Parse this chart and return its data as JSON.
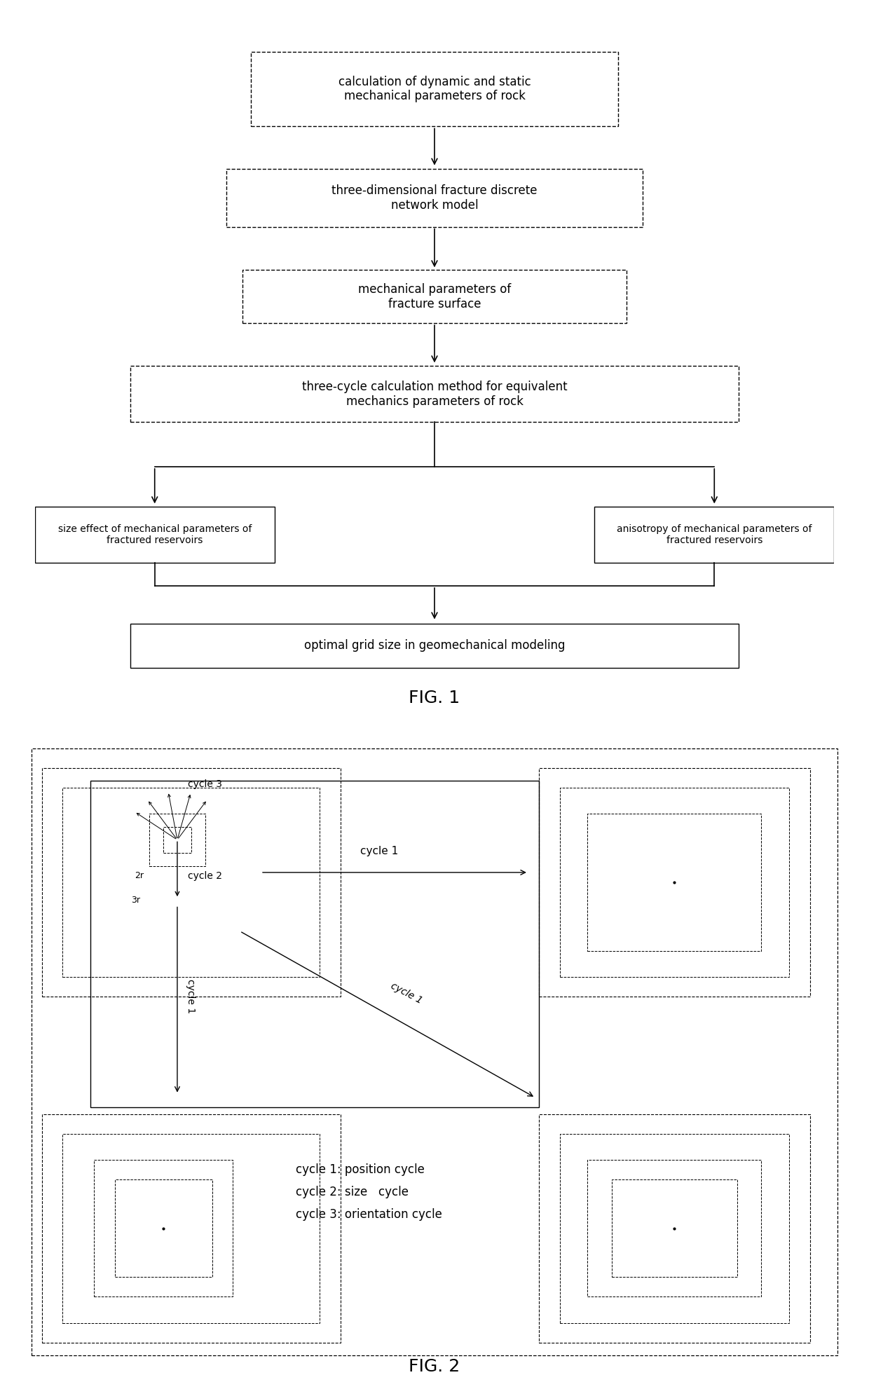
{
  "fig1_title": "FIG. 1",
  "fig2_title": "FIG. 2",
  "box1_text": "calculation of dynamic and static\nmechanical parameters of rock",
  "box2_text": "three-dimensional fracture discrete\nnetwork model",
  "box3_text": "mechanical parameters of\nfracture surface",
  "box4_text": "three-cycle calculation method for equivalent\nmechanics parameters of rock",
  "box5_text": "size effect of mechanical parameters of\nfractured reservoirs",
  "box6_text": "anisotropy of mechanical parameters of\nfractured reservoirs",
  "box7_text": "optimal grid size in geomechanical modeling",
  "cycle_legend": "cycle 1: position cycle\ncycle 2: size   cycle\ncycle 3: orientation cycle",
  "bg_color": "#ffffff",
  "text_color": "#000000",
  "font_size_box": 12,
  "font_size_small": 10,
  "title_font_size": 18
}
